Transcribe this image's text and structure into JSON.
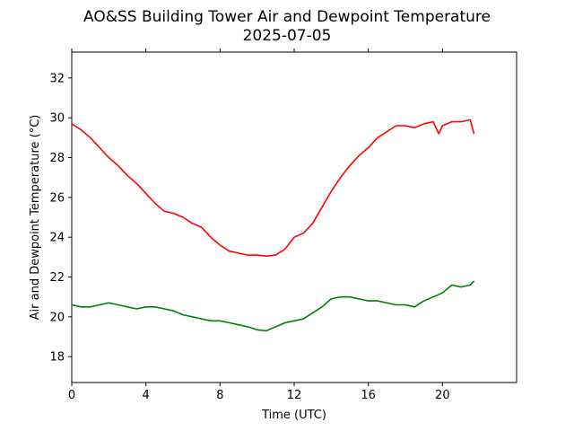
{
  "chart_data": {
    "type": "line",
    "title": "AO&SS Building Tower Air and Dewpoint Temperature",
    "subtitle": "2025-07-05",
    "xlabel": "Time (UTC)",
    "ylabel": "Air and Dewpoint Temperature (°C)",
    "xlim": [
      0,
      24
    ],
    "ylim": [
      16.7,
      33.3
    ],
    "x_ticks": [
      0,
      4,
      8,
      12,
      16,
      20
    ],
    "y_ticks": [
      18,
      20,
      22,
      24,
      26,
      28,
      30,
      32
    ],
    "grid": false,
    "legend": "none",
    "series": [
      {
        "color": "#ff0000",
        "x": [
          0,
          0.5,
          1,
          1.5,
          2,
          2.5,
          3,
          3.5,
          4,
          4.5,
          5,
          5.5,
          6,
          6.5,
          7,
          7.5,
          8,
          8.5,
          9,
          9.5,
          10,
          10.5,
          11,
          11.5,
          12,
          12.5,
          13,
          13.5,
          14,
          14.5,
          15,
          15.5,
          16,
          16.5,
          17,
          17.5,
          18,
          18.5,
          19,
          19.5,
          19.8,
          20,
          20.5,
          21,
          21.5,
          21.7
        ],
        "y": [
          29.7,
          29.4,
          29.0,
          28.5,
          28.0,
          27.6,
          27.1,
          26.7,
          26.2,
          25.7,
          25.3,
          25.2,
          25.0,
          24.7,
          24.5,
          24.0,
          23.6,
          23.3,
          23.2,
          23.1,
          23.1,
          23.05,
          23.1,
          23.4,
          24.0,
          24.2,
          24.7,
          25.5,
          26.3,
          27.0,
          27.6,
          28.1,
          28.5,
          29.0,
          29.3,
          29.6,
          29.6,
          29.5,
          29.7,
          29.8,
          29.2,
          29.6,
          29.8,
          29.8,
          29.9,
          29.2
        ]
      },
      {
        "color": "#008000",
        "x": [
          0,
          0.5,
          1,
          1.5,
          2,
          2.5,
          3,
          3.5,
          4,
          4.5,
          5,
          5.5,
          6,
          6.5,
          7,
          7.5,
          8,
          8.5,
          9,
          9.5,
          10,
          10.5,
          11,
          11.5,
          12,
          12.5,
          13,
          13.5,
          14,
          14.5,
          15,
          15.5,
          16,
          16.5,
          17,
          17.5,
          18,
          18.5,
          19,
          19.5,
          20,
          20.5,
          21,
          21.5,
          21.7
        ],
        "y": [
          20.6,
          20.5,
          20.5,
          20.6,
          20.7,
          20.6,
          20.5,
          20.4,
          20.5,
          20.5,
          20.4,
          20.3,
          20.1,
          20.0,
          19.9,
          19.8,
          19.8,
          19.7,
          19.6,
          19.5,
          19.35,
          19.3,
          19.5,
          19.7,
          19.8,
          19.9,
          20.2,
          20.5,
          20.9,
          21.0,
          21.0,
          20.9,
          20.8,
          20.8,
          20.7,
          20.6,
          20.6,
          20.5,
          20.8,
          21.0,
          21.2,
          21.6,
          21.5,
          21.6,
          21.8
        ]
      }
    ]
  }
}
